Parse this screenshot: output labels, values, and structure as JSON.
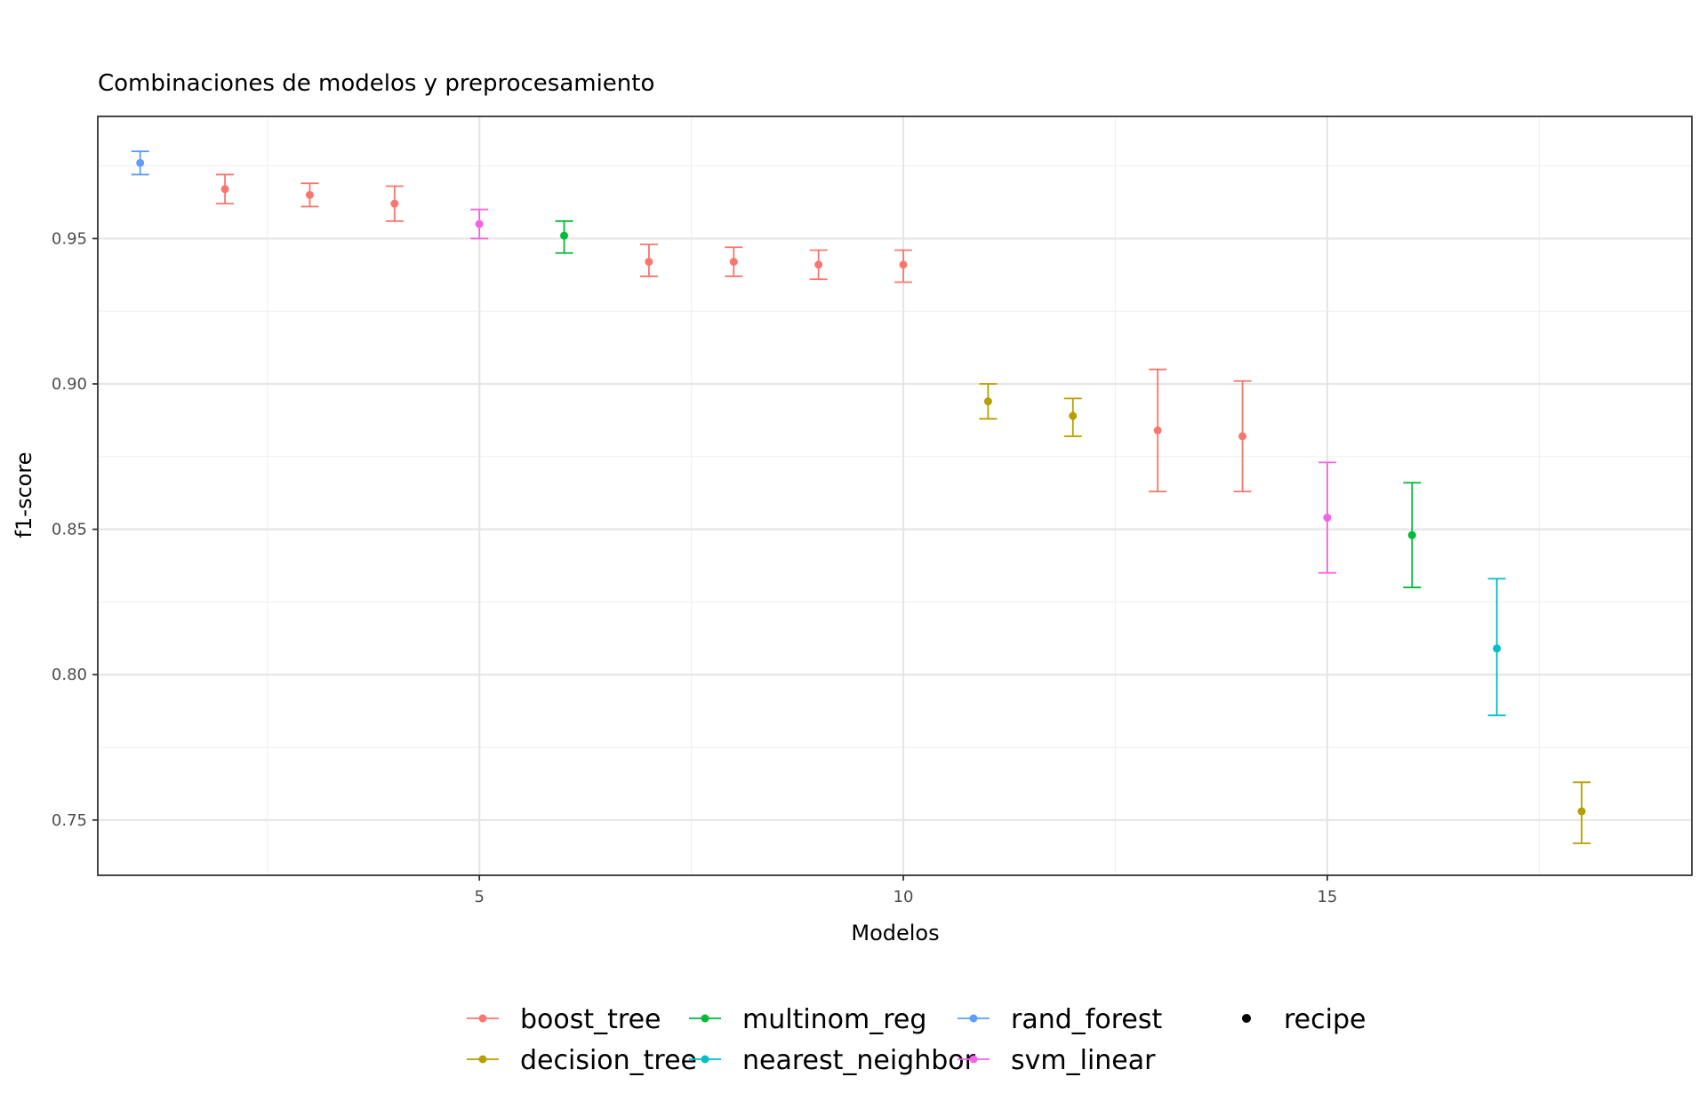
{
  "chart_data": {
    "type": "scatter",
    "title": "Combinaciones de modelos y preprocesamiento",
    "xlabel": "Modelos",
    "ylabel": "f1-score",
    "xlim": [
      0.5,
      19.3
    ],
    "ylim": [
      0.731,
      0.992
    ],
    "x_ticks": [
      5,
      10,
      15
    ],
    "x_tick_labels": [
      "5",
      "10",
      "15"
    ],
    "x_minor_ticks": [
      2.5,
      7.5,
      12.5,
      17.5
    ],
    "y_ticks": [
      0.75,
      0.8,
      0.85,
      0.9,
      0.95
    ],
    "y_tick_labels": [
      "0.75",
      "0.80",
      "0.85",
      "0.90",
      "0.95"
    ],
    "y_minor_ticks": [
      0.775,
      0.825,
      0.875,
      0.925,
      0.975
    ],
    "grid": true,
    "legend_position": "bottom",
    "colors": {
      "boost_tree": "#F8766D",
      "decision_tree": "#B79F00",
      "multinom_reg": "#00BA38",
      "nearest_neighbor": "#00BFC4",
      "rand_forest": "#619CFF",
      "svm_linear": "#F564E3"
    },
    "legend": {
      "model_entries": [
        "boost_tree",
        "decision_tree",
        "multinom_reg",
        "nearest_neighbor",
        "rand_forest",
        "svm_linear"
      ],
      "shape_entries": [
        "recipe"
      ]
    },
    "points": [
      {
        "x": 1,
        "y": 0.976,
        "lower": 0.972,
        "upper": 0.98,
        "model": "rand_forest"
      },
      {
        "x": 2,
        "y": 0.967,
        "lower": 0.962,
        "upper": 0.972,
        "model": "boost_tree"
      },
      {
        "x": 3,
        "y": 0.965,
        "lower": 0.961,
        "upper": 0.969,
        "model": "boost_tree"
      },
      {
        "x": 4,
        "y": 0.962,
        "lower": 0.956,
        "upper": 0.968,
        "model": "boost_tree"
      },
      {
        "x": 5,
        "y": 0.955,
        "lower": 0.95,
        "upper": 0.96,
        "model": "svm_linear"
      },
      {
        "x": 6,
        "y": 0.951,
        "lower": 0.945,
        "upper": 0.956,
        "model": "multinom_reg"
      },
      {
        "x": 7,
        "y": 0.942,
        "lower": 0.937,
        "upper": 0.948,
        "model": "boost_tree"
      },
      {
        "x": 8,
        "y": 0.942,
        "lower": 0.937,
        "upper": 0.947,
        "model": "boost_tree"
      },
      {
        "x": 9,
        "y": 0.941,
        "lower": 0.936,
        "upper": 0.946,
        "model": "boost_tree"
      },
      {
        "x": 10,
        "y": 0.941,
        "lower": 0.935,
        "upper": 0.946,
        "model": "boost_tree"
      },
      {
        "x": 11,
        "y": 0.894,
        "lower": 0.888,
        "upper": 0.9,
        "model": "decision_tree"
      },
      {
        "x": 12,
        "y": 0.889,
        "lower": 0.882,
        "upper": 0.895,
        "model": "decision_tree"
      },
      {
        "x": 13,
        "y": 0.884,
        "lower": 0.863,
        "upper": 0.905,
        "model": "boost_tree"
      },
      {
        "x": 14,
        "y": 0.882,
        "lower": 0.863,
        "upper": 0.901,
        "model": "boost_tree"
      },
      {
        "x": 15,
        "y": 0.854,
        "lower": 0.835,
        "upper": 0.873,
        "model": "svm_linear"
      },
      {
        "x": 16,
        "y": 0.848,
        "lower": 0.83,
        "upper": 0.866,
        "model": "multinom_reg"
      },
      {
        "x": 17,
        "y": 0.809,
        "lower": 0.786,
        "upper": 0.833,
        "model": "nearest_neighbor"
      },
      {
        "x": 18,
        "y": 0.753,
        "lower": 0.742,
        "upper": 0.763,
        "model": "decision_tree"
      }
    ]
  }
}
